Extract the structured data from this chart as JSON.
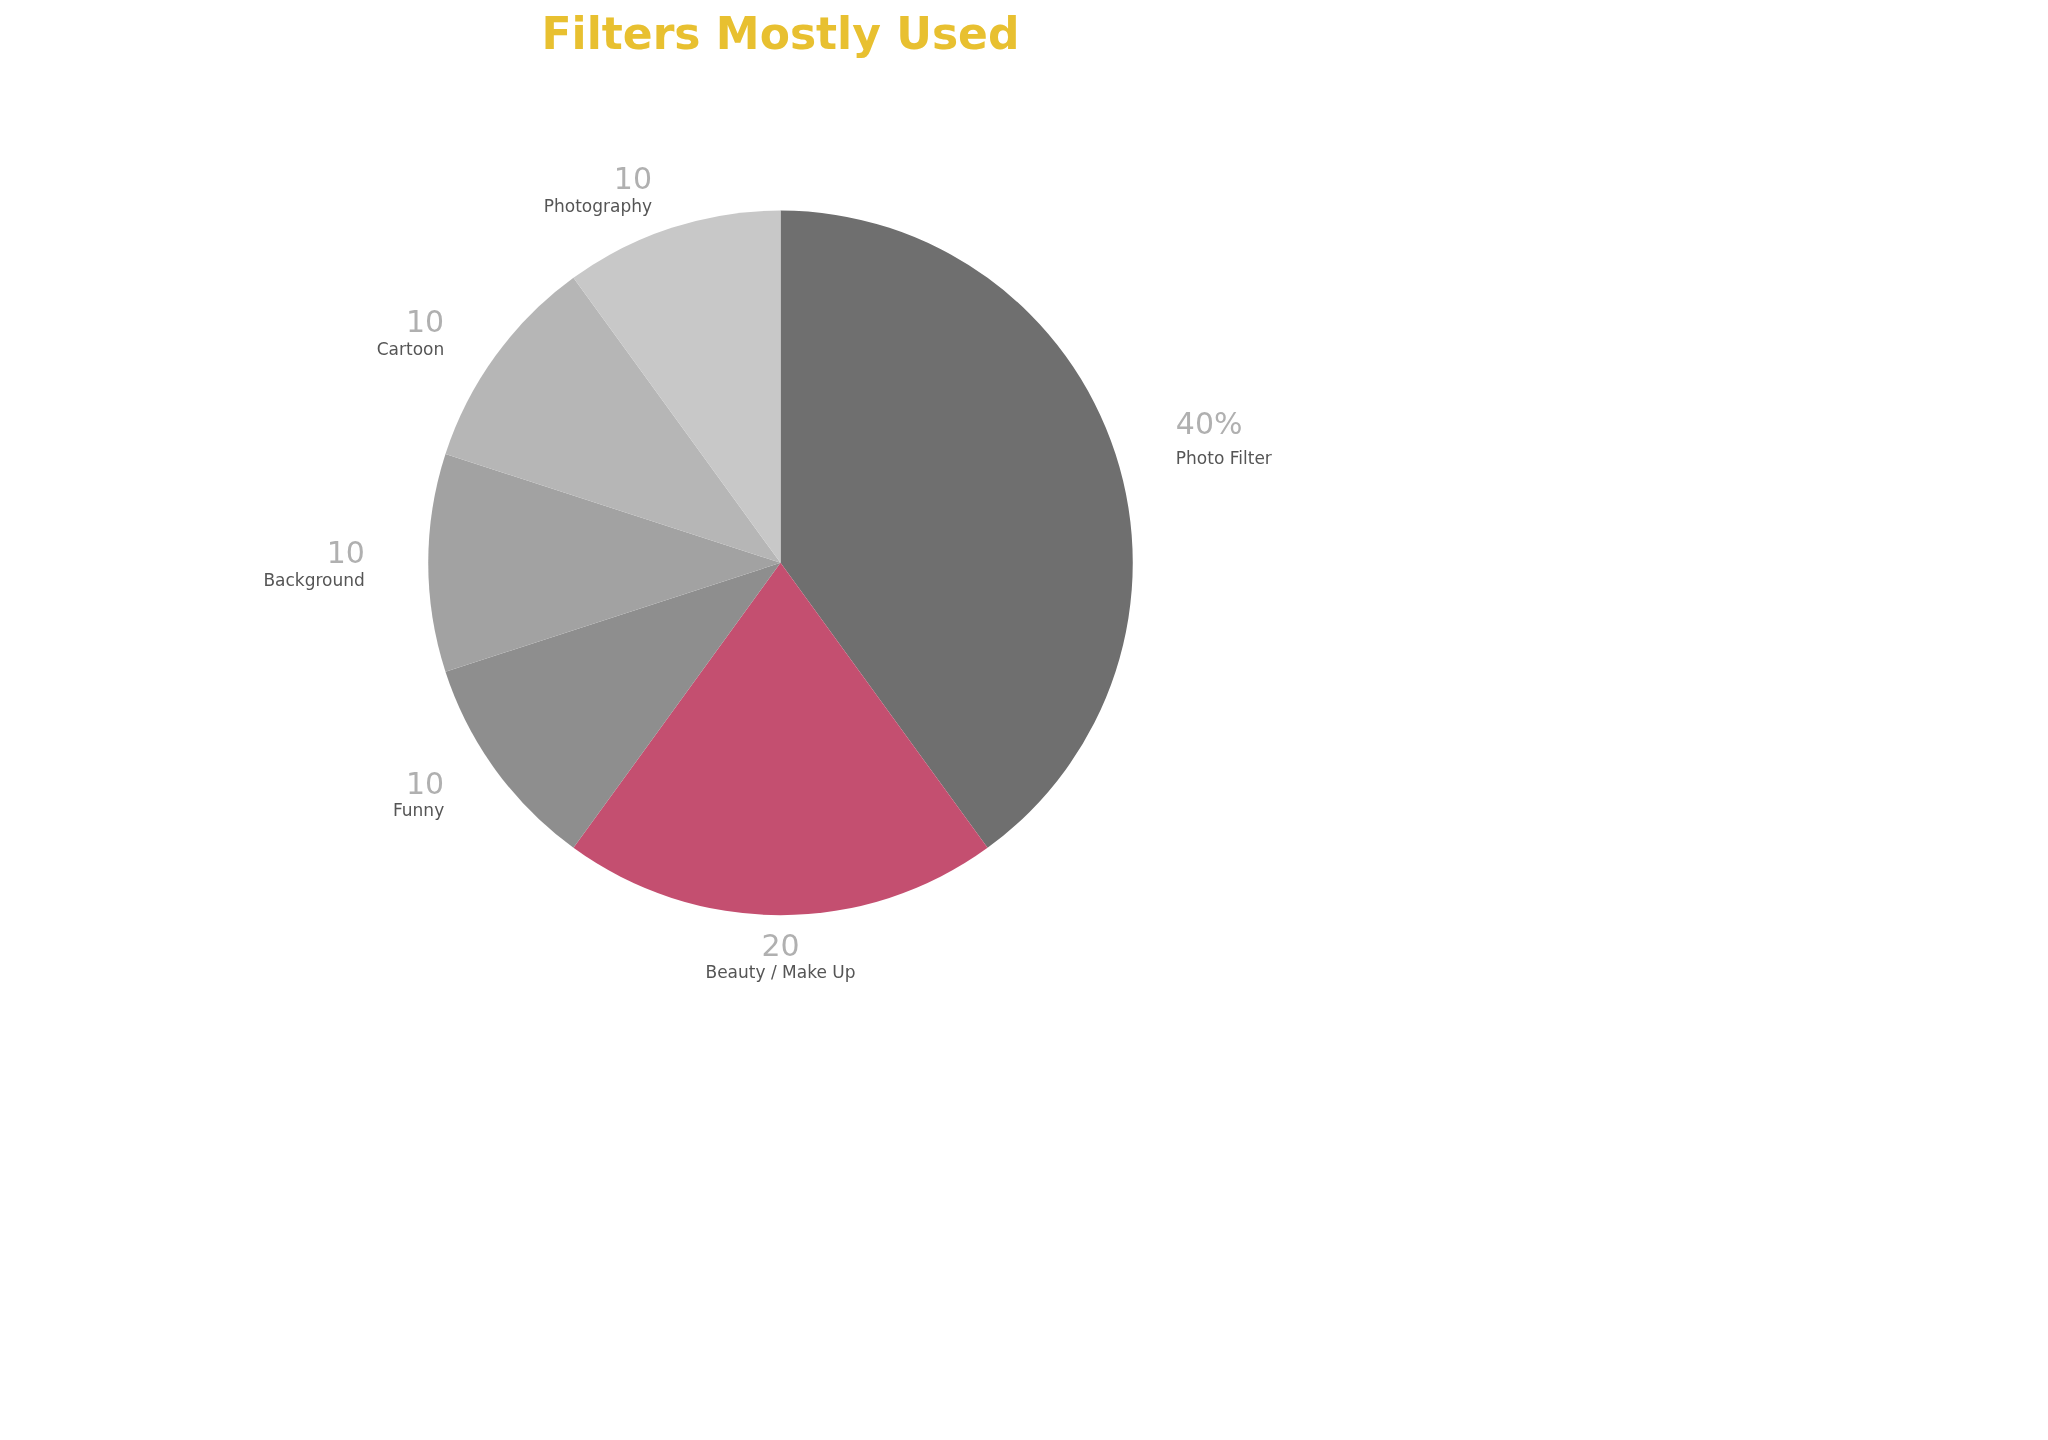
{
  "chart_data": {
    "type": "pie",
    "title": "Filters Mostly Used",
    "categories": [
      "Photo Filter",
      "Beauty / Make Up",
      "Funny",
      "Background",
      "Cartoon",
      "Photography"
    ],
    "values": [
      40,
      20,
      10,
      10,
      10,
      10
    ],
    "value_labels": [
      "40%",
      "20",
      "10",
      "10",
      "10",
      "10"
    ],
    "colors": [
      "#6f6f6f",
      "#c44f70",
      "#8e8e8e",
      "#a2a2a2",
      "#b6b6b6",
      "#c8c8c8"
    ]
  }
}
